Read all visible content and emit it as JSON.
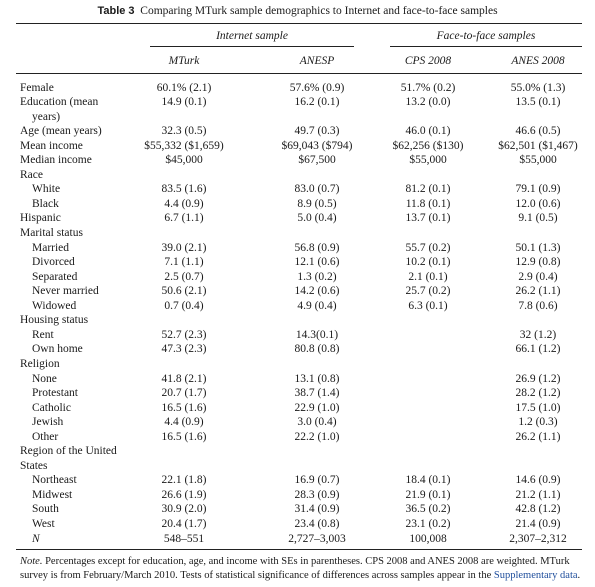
{
  "table": {
    "label": "Table 3",
    "title": "Comparing MTurk sample demographics to Internet and face-to-face samples",
    "groups": [
      "Internet sample",
      "Face-to-face samples"
    ],
    "columns": [
      "MTurk",
      "ANESP",
      "CPS 2008",
      "ANES 2008"
    ],
    "rows": [
      {
        "label": "Female",
        "indent": false,
        "cells": [
          "60.1% (2.1)",
          "57.6% (0.9)",
          "51.7% (0.2)",
          "55.0% (1.3)"
        ]
      },
      {
        "label": "Education (mean",
        "indent": false,
        "cells": [
          "14.9 (0.1)",
          "16.2 (0.1)",
          "13.2 (0.0)",
          "13.5 (0.1)"
        ]
      },
      {
        "label": "years)",
        "indent": true,
        "cells": [
          "",
          "",
          "",
          ""
        ]
      },
      {
        "label": "Age (mean years)",
        "indent": false,
        "cells": [
          "32.3 (0.5)",
          "49.7 (0.3)",
          "46.0 (0.1)",
          "46.6 (0.5)"
        ]
      },
      {
        "label": "Mean income",
        "indent": false,
        "cells": [
          "$55,332 ($1,659)",
          "$69,043 ($794)",
          "$62,256 ($130)",
          "$62,501 ($1,467)"
        ]
      },
      {
        "label": "Median income",
        "indent": false,
        "cells": [
          "$45,000",
          "$67,500",
          "$55,000",
          "$55,000"
        ]
      },
      {
        "label": "Race",
        "indent": false,
        "cells": [
          "",
          "",
          "",
          ""
        ]
      },
      {
        "label": "White",
        "indent": true,
        "cells": [
          "83.5 (1.6)",
          "83.0 (0.7)",
          "81.2 (0.1)",
          "79.1 (0.9)"
        ]
      },
      {
        "label": "Black",
        "indent": true,
        "cells": [
          "4.4 (0.9)",
          "8.9 (0.5)",
          "11.8 (0.1)",
          "12.0 (0.6)"
        ]
      },
      {
        "label": "Hispanic",
        "indent": false,
        "cells": [
          "6.7 (1.1)",
          "5.0 (0.4)",
          "13.7 (0.1)",
          "9.1 (0.5)"
        ]
      },
      {
        "label": "Marital status",
        "indent": false,
        "cells": [
          "",
          "",
          "",
          ""
        ]
      },
      {
        "label": "Married",
        "indent": true,
        "cells": [
          "39.0 (2.1)",
          "56.8 (0.9)",
          "55.7 (0.2)",
          "50.1 (1.3)"
        ]
      },
      {
        "label": "Divorced",
        "indent": true,
        "cells": [
          "7.1 (1.1)",
          "12.1 (0.6)",
          "10.2 (0.1)",
          "12.9 (0.8)"
        ]
      },
      {
        "label": "Separated",
        "indent": true,
        "cells": [
          "2.5 (0.7)",
          "1.3 (0.2)",
          "2.1 (0.1)",
          "2.9 (0.4)"
        ]
      },
      {
        "label": "Never married",
        "indent": true,
        "cells": [
          "50.6 (2.1)",
          "14.2 (0.6)",
          "25.7 (0.2)",
          "26.2 (1.1)"
        ]
      },
      {
        "label": "Widowed",
        "indent": true,
        "cells": [
          "0.7 (0.4)",
          "4.9 (0.4)",
          "6.3 (0.1)",
          "7.8 (0.6)"
        ]
      },
      {
        "label": "Housing status",
        "indent": false,
        "cells": [
          "",
          "",
          "",
          ""
        ]
      },
      {
        "label": "Rent",
        "indent": true,
        "cells": [
          "52.7 (2.3)",
          "14.3(0.1)",
          "",
          "32 (1.2)"
        ]
      },
      {
        "label": "Own home",
        "indent": true,
        "cells": [
          "47.3 (2.3)",
          "80.8 (0.8)",
          "",
          "66.1 (1.2)"
        ]
      },
      {
        "label": "Religion",
        "indent": false,
        "cells": [
          "",
          "",
          "",
          ""
        ]
      },
      {
        "label": "None",
        "indent": true,
        "cells": [
          "41.8 (2.1)",
          "13.1 (0.8)",
          "",
          "26.9 (1.2)"
        ]
      },
      {
        "label": "Protestant",
        "indent": true,
        "cells": [
          "20.7 (1.7)",
          "38.7 (1.4)",
          "",
          "28.2 (1.2)"
        ]
      },
      {
        "label": "Catholic",
        "indent": true,
        "cells": [
          "16.5 (1.6)",
          "22.9 (1.0)",
          "",
          "17.5 (1.0)"
        ]
      },
      {
        "label": "Jewish",
        "indent": true,
        "cells": [
          "4.4 (0.9)",
          "3.0 (0.4)",
          "",
          "1.2 (0.3)"
        ]
      },
      {
        "label": "Other",
        "indent": true,
        "cells": [
          "16.5 (1.6)",
          "22.2 (1.0)",
          "",
          "26.2 (1.1)"
        ]
      },
      {
        "label": "Region of the United",
        "indent": false,
        "cells": [
          "",
          "",
          "",
          ""
        ]
      },
      {
        "label": "States",
        "indent": false,
        "cells": [
          "",
          "",
          "",
          ""
        ]
      },
      {
        "label": "Northeast",
        "indent": true,
        "cells": [
          "22.1 (1.8)",
          "16.9 (0.7)",
          "18.4 (0.1)",
          "14.6 (0.9)"
        ]
      },
      {
        "label": "Midwest",
        "indent": true,
        "cells": [
          "26.6 (1.9)",
          "28.3 (0.9)",
          "21.9 (0.1)",
          "21.2 (1.1)"
        ]
      },
      {
        "label": "South",
        "indent": true,
        "cells": [
          "30.9 (2.0)",
          "31.4 (0.9)",
          "36.5 (0.2)",
          "42.8 (1.2)"
        ]
      },
      {
        "label": "West",
        "indent": true,
        "cells": [
          "20.4 (1.7)",
          "23.4 (0.8)",
          "23.1 (0.2)",
          "21.4 (0.9)"
        ]
      },
      {
        "label": "N",
        "indent": true,
        "italic": true,
        "cells": [
          "548–551",
          "2,727–3,003",
          "100,008",
          "2,307–2,312"
        ]
      }
    ],
    "note": {
      "label": "Note.",
      "text": "Percentages except for education, age, and income with SEs in parentheses. CPS 2008 and ANES 2008 are weighted. MTurk survey is from February/March 2010. Tests of statistical significance of differences across samples appear in the ",
      "link": "Supplementary data",
      "end": "."
    }
  }
}
